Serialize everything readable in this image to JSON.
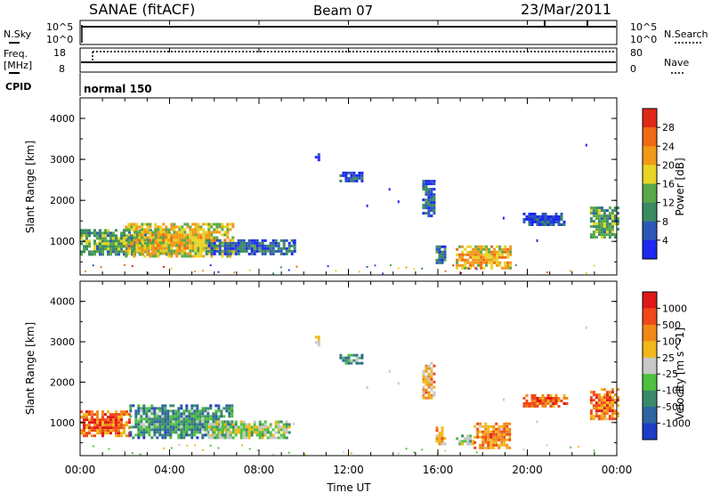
{
  "header": {
    "title": "SANAE (fitACF)",
    "beam": "Beam 07",
    "date": "23/Mar/2011"
  },
  "top_panels": {
    "nsky_label": "N.Sky",
    "nsky_ticks": [
      "10^5",
      "10^0"
    ],
    "nsearch_label": "N.Search",
    "nsearch_ticks": [
      "10^5",
      "10^0"
    ],
    "freq_label": "Freq.",
    "freq_unit": "[MHz]",
    "freq_ticks": [
      "18",
      "8"
    ],
    "nave_label": "Nave",
    "nave_ticks": [
      "80",
      "0"
    ],
    "cpid_label": "CPID",
    "cpid_value": "normal 150"
  },
  "chart_data": [
    {
      "type": "heatmap",
      "name": "power",
      "ylabel": "Slant Range [km]",
      "yticks": [
        "4000",
        "3000",
        "2000",
        "1000"
      ],
      "ylim": [
        180,
        4500
      ],
      "xlim": [
        0,
        24
      ],
      "colorbar_label": "Power [dB]",
      "colorbar_ticks": [
        "28",
        "24",
        "20",
        "16",
        "12",
        "8",
        "4"
      ],
      "colorbar_range": [
        0,
        32
      ],
      "colors": [
        "#1e28f0",
        "#2e58b8",
        "#3a8a62",
        "#5aa84a",
        "#e8d424",
        "#f09a18",
        "#ee6a14",
        "#e02818"
      ],
      "regions": [
        {
          "t": [
            0.0,
            4.0
          ],
          "r": [
            700,
            1300
          ],
          "level": 0.35
        },
        {
          "t": [
            2.0,
            6.8
          ],
          "r": [
            650,
            1450
          ],
          "level": 0.55
        },
        {
          "t": [
            5.6,
            9.6
          ],
          "r": [
            700,
            1050
          ],
          "level": 0.2
        },
        {
          "t": [
            10.5,
            10.7
          ],
          "r": [
            2950,
            3150
          ],
          "level": 0.05
        },
        {
          "t": [
            11.6,
            12.6
          ],
          "r": [
            2450,
            2700
          ],
          "level": 0.08
        },
        {
          "t": [
            15.3,
            15.8
          ],
          "r": [
            1600,
            2500
          ],
          "level": 0.15
        },
        {
          "t": [
            15.9,
            16.3
          ],
          "r": [
            500,
            900
          ],
          "level": 0.2
        },
        {
          "t": [
            16.8,
            19.2
          ],
          "r": [
            350,
            900
          ],
          "level": 0.6
        },
        {
          "t": [
            19.8,
            21.8
          ],
          "r": [
            1400,
            1700
          ],
          "level": 0.08
        },
        {
          "t": [
            22.8,
            24.0
          ],
          "r": [
            1100,
            1850
          ],
          "level": 0.35
        }
      ]
    },
    {
      "type": "heatmap",
      "name": "velocity",
      "ylabel": "Slant Range [km]",
      "yticks": [
        "4000",
        "3000",
        "2000",
        "1000"
      ],
      "ylim": [
        180,
        4500
      ],
      "xlim": [
        0,
        24
      ],
      "xticks": [
        "00:00",
        "04:00",
        "08:00",
        "12:00",
        "16:00",
        "20:00",
        "00:00"
      ],
      "xlabel": "Time UT",
      "colorbar_label": "Velocity [m s^-1]",
      "colorbar_ticks": [
        "1000",
        "500",
        "100",
        "25",
        "-25",
        "-100",
        "-500",
        "-1000"
      ],
      "colorbar_range": [
        -1250,
        1250
      ],
      "colors": [
        "#1e3cc8",
        "#2e64a0",
        "#3a8a6a",
        "#50c040",
        "#c8c8c8",
        "#f0b818",
        "#f08818",
        "#f04818",
        "#e01818"
      ],
      "regions": [
        {
          "t": [
            0.0,
            2.2
          ],
          "r": [
            700,
            1300
          ],
          "level": 0.75
        },
        {
          "t": [
            2.2,
            6.8
          ],
          "r": [
            650,
            1450
          ],
          "level": 0.25
        },
        {
          "t": [
            5.6,
            9.4
          ],
          "r": [
            650,
            1050
          ],
          "level": 0.42
        },
        {
          "t": [
            10.5,
            10.7
          ],
          "r": [
            2950,
            3150
          ],
          "level": 0.6
        },
        {
          "t": [
            11.6,
            12.6
          ],
          "r": [
            2450,
            2700
          ],
          "level": 0.25
        },
        {
          "t": [
            15.3,
            15.8
          ],
          "r": [
            1600,
            2500
          ],
          "level": 0.6
        },
        {
          "t": [
            15.9,
            16.3
          ],
          "r": [
            500,
            900
          ],
          "level": 0.65
        },
        {
          "t": [
            16.8,
            17.6
          ],
          "r": [
            450,
            700
          ],
          "level": 0.4
        },
        {
          "t": [
            17.6,
            19.2
          ],
          "r": [
            350,
            1000
          ],
          "level": 0.68
        },
        {
          "t": [
            19.8,
            21.8
          ],
          "r": [
            1400,
            1700
          ],
          "level": 0.75
        },
        {
          "t": [
            22.8,
            24.0
          ],
          "r": [
            1100,
            1850
          ],
          "level": 0.72
        }
      ]
    }
  ]
}
